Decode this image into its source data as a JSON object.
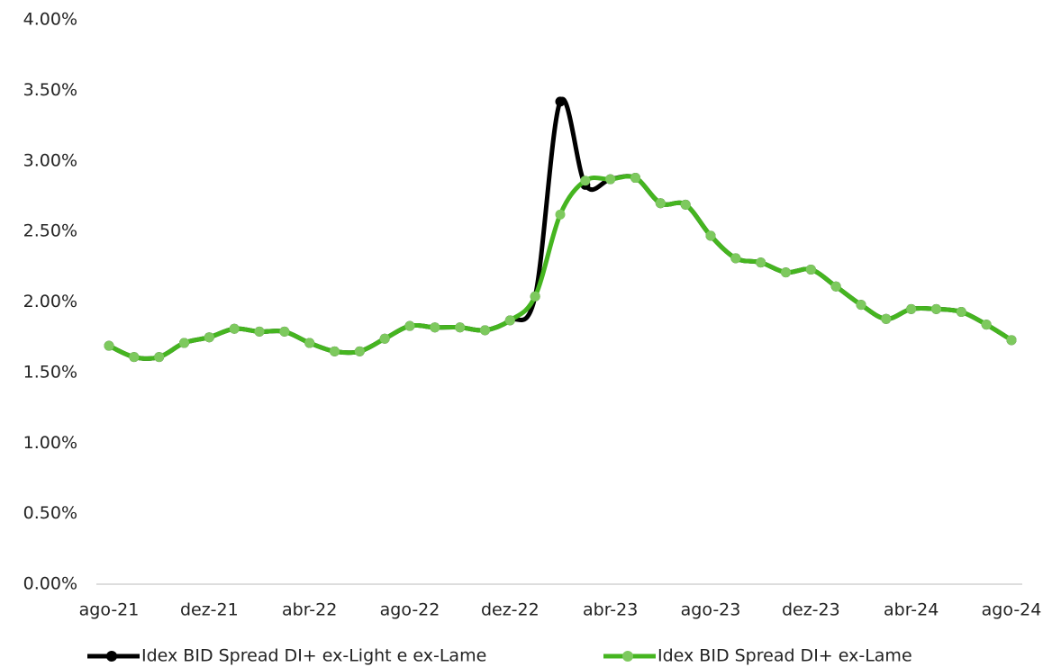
{
  "chart_data": {
    "type": "line",
    "categories": [
      "ago-21",
      null,
      null,
      null,
      "dez-21",
      null,
      null,
      null,
      "abr-22",
      null,
      null,
      null,
      "ago-22",
      null,
      null,
      null,
      "dez-22",
      null,
      null,
      null,
      "abr-23",
      null,
      null,
      null,
      "ago-23",
      null,
      null,
      null,
      "dez-23",
      null,
      null,
      null,
      "abr-24",
      null,
      null,
      null,
      "ago-24"
    ],
    "series": [
      {
        "name": "Idex BID Spread DI+ ex-Light e ex-Lame",
        "color": "#000000",
        "marker_color": "#000000",
        "values": [
          1.69,
          1.61,
          1.61,
          1.71,
          1.75,
          1.81,
          1.79,
          1.79,
          1.71,
          1.65,
          1.65,
          1.74,
          1.83,
          1.82,
          1.82,
          1.8,
          1.87,
          2.04,
          3.42,
          2.83,
          2.87,
          2.88,
          2.7,
          2.69,
          2.47,
          2.31,
          2.28,
          2.21,
          2.23,
          2.11,
          1.98,
          1.88,
          1.95,
          1.95,
          1.93,
          1.84,
          1.73
        ]
      },
      {
        "name": "Idex BID Spread DI+ ex-Lame",
        "color": "#45b520",
        "marker_color": "#7dc95e",
        "values": [
          1.69,
          1.61,
          1.61,
          1.71,
          1.75,
          1.81,
          1.79,
          1.79,
          1.71,
          1.65,
          1.65,
          1.74,
          1.83,
          1.82,
          1.82,
          1.8,
          1.87,
          2.04,
          2.62,
          2.86,
          2.87,
          2.88,
          2.7,
          2.69,
          2.47,
          2.31,
          2.28,
          2.21,
          2.23,
          2.11,
          1.98,
          1.88,
          1.95,
          1.95,
          1.93,
          1.84,
          1.73
        ]
      }
    ],
    "ylim": [
      0,
      4
    ],
    "yticks": [
      {
        "value": 0,
        "label": "0.00%"
      },
      {
        "value": 0.5,
        "label": "0.50%"
      },
      {
        "value": 1,
        "label": "1.00%"
      },
      {
        "value": 1.5,
        "label": "1.50%"
      },
      {
        "value": 2,
        "label": "2.00%"
      },
      {
        "value": 2.5,
        "label": "2.50%"
      },
      {
        "value": 3,
        "label": "3.00%"
      },
      {
        "value": 3.5,
        "label": "3.50%"
      },
      {
        "value": 4,
        "label": "4.00%"
      }
    ],
    "grid": false,
    "legend": "bottom"
  }
}
